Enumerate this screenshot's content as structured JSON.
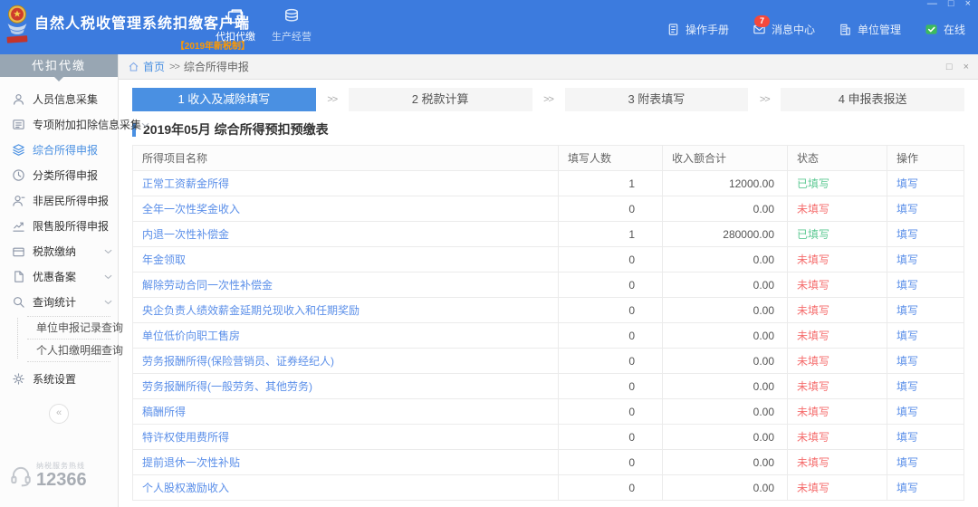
{
  "topbar": {
    "title": "自然人税收管理系统扣缴客户端",
    "subtitle": "【2019年新税制】",
    "mode_tabs": [
      {
        "label": "代扣代缴",
        "icon": "wallet-icon",
        "active": true
      },
      {
        "label": "生产经营",
        "icon": "coins-icon",
        "active": false
      }
    ],
    "right_items": [
      {
        "label": "操作手册",
        "icon": "manual-icon"
      },
      {
        "label": "消息中心",
        "icon": "message-icon",
        "badge": "7"
      },
      {
        "label": "单位管理",
        "icon": "org-icon"
      },
      {
        "label": "在线",
        "icon": "online-icon"
      }
    ],
    "window_controls": {
      "minimize": "—",
      "maximize": "□",
      "close": "×"
    }
  },
  "sidebar": {
    "header": "代扣代缴",
    "items": [
      {
        "label": "人员信息采集",
        "icon": "person-icon"
      },
      {
        "label": "专项附加扣除信息采集",
        "icon": "deduction-icon",
        "chevron": true
      },
      {
        "label": "综合所得申报",
        "icon": "layers-icon",
        "active": true
      },
      {
        "label": "分类所得申报",
        "icon": "clock-icon"
      },
      {
        "label": "非居民所得申报",
        "icon": "nonresident-icon"
      },
      {
        "label": "限售股所得申报",
        "icon": "chart-icon"
      },
      {
        "label": "税款缴纳",
        "icon": "payment-icon",
        "chevron": true
      },
      {
        "label": "优惠备案",
        "icon": "record-icon",
        "chevron": true
      },
      {
        "label": "查询统计",
        "icon": "query-icon",
        "chevron": true,
        "children": [
          "单位申报记录查询",
          "个人扣缴明细查询"
        ]
      },
      {
        "label": "系统设置",
        "icon": "gear-icon"
      }
    ],
    "collapse_glyph": "«",
    "hotline": {
      "label": "纳税服务热线",
      "number": "12366"
    }
  },
  "breadcrumb": {
    "home": "首页",
    "separator": ">>",
    "current": "综合所得申报"
  },
  "steps": {
    "separator": ">>",
    "items": [
      {
        "label": "1 收入及减除填写",
        "active": true
      },
      {
        "label": "2 税款计算",
        "active": false
      },
      {
        "label": "3 附表填写",
        "active": false
      },
      {
        "label": "4 申报表报送",
        "active": false
      }
    ]
  },
  "table": {
    "title": "2019年05月  综合所得预扣预缴表",
    "columns": [
      "所得项目名称",
      "填写人数",
      "收入额合计",
      "状态",
      "操作"
    ],
    "action_label": "填写",
    "rows": [
      {
        "name": "正常工资薪金所得",
        "count": "1",
        "amount": "12000.00",
        "status": "已填写",
        "filled": true
      },
      {
        "name": "全年一次性奖金收入",
        "count": "0",
        "amount": "0.00",
        "status": "未填写",
        "filled": false
      },
      {
        "name": "内退一次性补偿金",
        "count": "1",
        "amount": "280000.00",
        "status": "已填写",
        "filled": true
      },
      {
        "name": "年金领取",
        "count": "0",
        "amount": "0.00",
        "status": "未填写",
        "filled": false
      },
      {
        "name": "解除劳动合同一次性补偿金",
        "count": "0",
        "amount": "0.00",
        "status": "未填写",
        "filled": false
      },
      {
        "name": "央企负责人绩效薪金延期兑现收入和任期奖励",
        "count": "0",
        "amount": "0.00",
        "status": "未填写",
        "filled": false
      },
      {
        "name": "单位低价向职工售房",
        "count": "0",
        "amount": "0.00",
        "status": "未填写",
        "filled": false
      },
      {
        "name": "劳务报酬所得(保险营销员、证券经纪人)",
        "count": "0",
        "amount": "0.00",
        "status": "未填写",
        "filled": false
      },
      {
        "name": "劳务报酬所得(一般劳务、其他劳务)",
        "count": "0",
        "amount": "0.00",
        "status": "未填写",
        "filled": false
      },
      {
        "name": "稿酬所得",
        "count": "0",
        "amount": "0.00",
        "status": "未填写",
        "filled": false
      },
      {
        "name": "特许权使用费所得",
        "count": "0",
        "amount": "0.00",
        "status": "未填写",
        "filled": false
      },
      {
        "name": "提前退休一次性补贴",
        "count": "0",
        "amount": "0.00",
        "status": "未填写",
        "filled": false
      },
      {
        "name": "个人股权激励收入",
        "count": "0",
        "amount": "0.00",
        "status": "未填写",
        "filled": false
      }
    ]
  },
  "colors": {
    "topbar_blue": "#3C7BDE",
    "accent_blue": "#4A90E2",
    "link_blue": "#5B8FE9",
    "status_green": "#5DC993",
    "status_red": "#F56C6C",
    "subtitle_orange": "#FF9900",
    "online_green": "#3DBA5E",
    "badge_red": "#F5483B",
    "sidebar_header_gray": "#98A6B3"
  }
}
